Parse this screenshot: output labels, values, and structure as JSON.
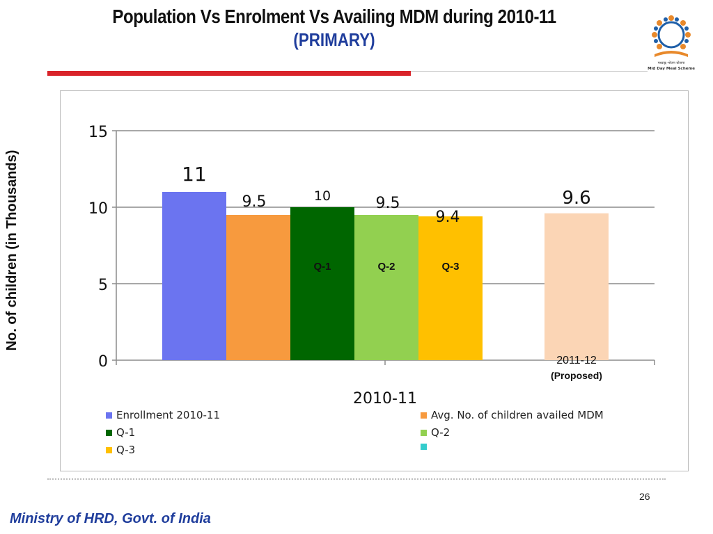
{
  "header": {
    "title": "Population Vs Enrolment Vs Availing MDM during  2010-11",
    "subtitle": "(PRIMARY)"
  },
  "logo": {
    "icon": "mid-day-meal-logo-icon",
    "text": "Mid Day Meal Scheme"
  },
  "footer": {
    "page_number": "26",
    "ministry": "Ministry of HRD, Govt. of India"
  },
  "chart_data": {
    "type": "bar",
    "ylabel": "No. of children (in Thousands)",
    "ylim": [
      0,
      15
    ],
    "yticks": [
      "0",
      "5",
      "10",
      "15"
    ],
    "grid": true,
    "groups": [
      {
        "label": "2010-11",
        "sublabel": ""
      },
      {
        "label": "2011-12",
        "sublabel": "(Proposed)"
      }
    ],
    "bars": [
      {
        "group": 0,
        "series": "Enrollment 2010-11",
        "value": 11,
        "label": "11",
        "color": "#6b74f0",
        "inner_label": ""
      },
      {
        "group": 0,
        "series": "Avg. No. of children availed MDM",
        "value": 9.5,
        "label": "9.5",
        "color": "#f79a3e",
        "inner_label": ""
      },
      {
        "group": 0,
        "series": "Q-1",
        "value": 10,
        "label": "10",
        "color": "#006600",
        "inner_label": "Q-1"
      },
      {
        "group": 0,
        "series": "Q-2",
        "value": 9.5,
        "label": "9.5",
        "color": "#92d050",
        "inner_label": "Q-2"
      },
      {
        "group": 0,
        "series": "Q-3",
        "value": 9.4,
        "label": "9.4",
        "color": "#ffc000",
        "inner_label": "Q-3"
      },
      {
        "group": 1,
        "series": "",
        "value": 9.6,
        "label": "9.6",
        "color": "#fbd5b5",
        "inner_label": ""
      }
    ],
    "legend": [
      {
        "name": "Enrollment 2010-11",
        "color": "#6b74f0"
      },
      {
        "name": "Avg. No. of children availed MDM",
        "color": "#f79a3e"
      },
      {
        "name": "Q-1",
        "color": "#006600"
      },
      {
        "name": "Q-2",
        "color": "#92d050"
      },
      {
        "name": "Q-3",
        "color": "#ffc000"
      },
      {
        "name": "",
        "color": "#33cccc"
      }
    ]
  }
}
